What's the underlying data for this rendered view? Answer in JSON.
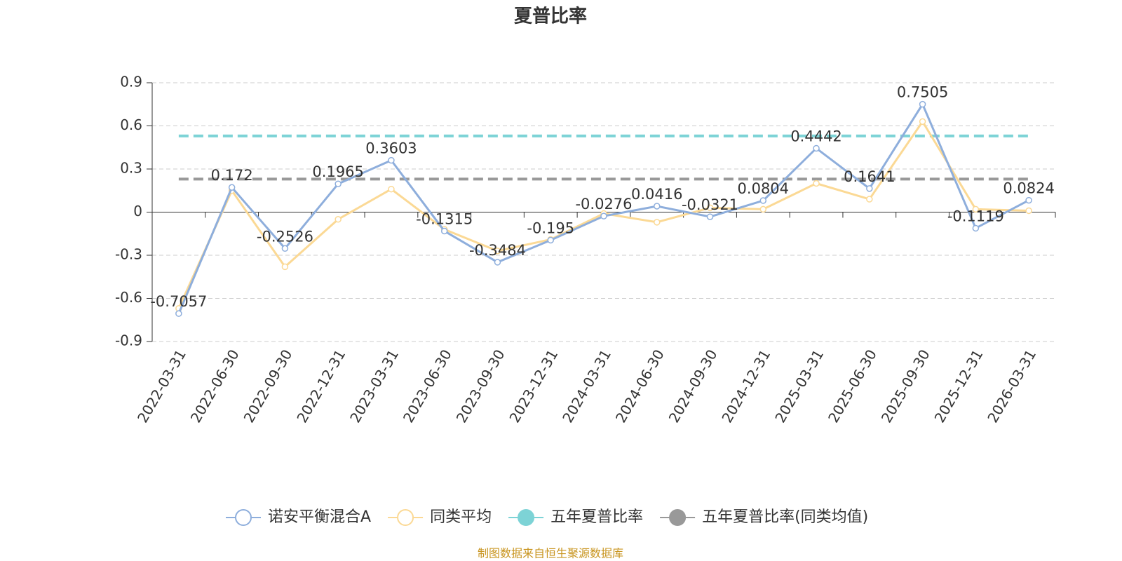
{
  "chart_data": {
    "type": "line",
    "title": "夏普比率",
    "categories": [
      "2022-03-31",
      "2022-06-30",
      "2022-09-30",
      "2022-12-31",
      "2023-03-31",
      "2023-06-30",
      "2023-09-30",
      "2023-12-31",
      "2024-03-31",
      "2024-06-30",
      "2024-09-30",
      "2024-12-31",
      "2025-03-31",
      "2025-06-30",
      "2025-09-30",
      "2025-12-31",
      "2026-03-31"
    ],
    "series": [
      {
        "name": "诺安平衡混合A",
        "color": "#8eaedc",
        "data_labels": true,
        "values": [
          -0.7057,
          0.172,
          -0.2526,
          0.1965,
          0.3603,
          -0.1315,
          -0.3484,
          -0.195,
          -0.0276,
          0.0416,
          -0.0321,
          0.0804,
          0.4442,
          0.1641,
          0.7505,
          -0.1119,
          0.0824
        ]
      },
      {
        "name": "同类平均",
        "color": "#fbd995",
        "data_labels": false,
        "values": [
          -0.67,
          0.15,
          -0.38,
          -0.05,
          0.16,
          -0.12,
          -0.27,
          -0.19,
          -0.01,
          -0.07,
          0.03,
          0.02,
          0.2,
          0.09,
          0.63,
          0.02,
          0.01
        ]
      }
    ],
    "reference_lines": [
      {
        "name": "五年夏普比率",
        "color": "#7dd3d6",
        "value": 0.53
      },
      {
        "name": "五年夏普比率(同类均值)",
        "color": "#999999",
        "value": 0.23
      }
    ],
    "ylim": [
      -0.9,
      0.9
    ],
    "yticks": [
      -0.9,
      -0.6,
      -0.3,
      0,
      0.3,
      0.6,
      0.9
    ],
    "grid": true,
    "legend": "bottom",
    "source": "制图数据来自恒生聚源数据库"
  }
}
